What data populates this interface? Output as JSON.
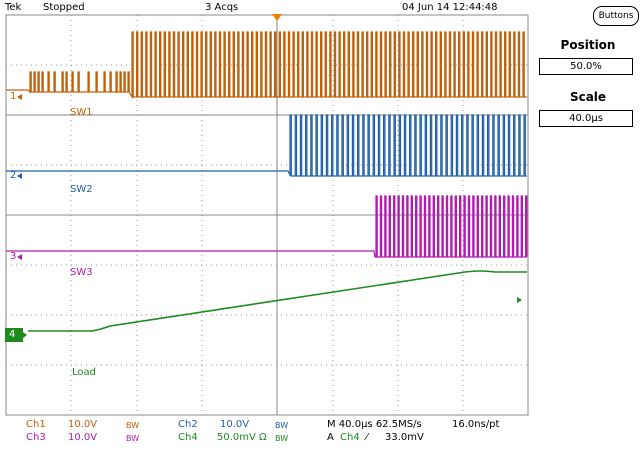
{
  "header": {
    "brand": "Tek",
    "run_state": "Stopped",
    "acqs": "3 Acqs",
    "datetime": "04 Jun 14 12:44:48"
  },
  "side_menu": {
    "buttons_label": "Buttons",
    "position_label": "Position",
    "position_value": "50.0%",
    "scale_label": "Scale",
    "scale_value": "40.0µs"
  },
  "traces": {
    "ch1_label": "SW1",
    "ch2_label": "SW2",
    "ch3_label": "SW3",
    "ch4_label": "Load",
    "ch1_marker": "1",
    "ch2_marker": "2",
    "ch3_marker": "3",
    "ch4_marker": "4"
  },
  "footer": {
    "ch1": "Ch1",
    "ch1_scale": "10.0V",
    "ch2": "Ch2",
    "ch2_scale": "10.0V",
    "ch3": "Ch3",
    "ch3_scale": "10.0V",
    "ch4": "Ch4",
    "ch4_scale": "50.0mV",
    "ohm": "Ω",
    "bw": "BW",
    "timebase": "M 40.0µs 62.5MS/s",
    "resolution": "16.0ns/pt",
    "trigger_prefix": "A",
    "trigger_source": "Ch4",
    "trigger_slope": "⁄",
    "trigger_level": "33.0mV"
  },
  "colors": {
    "ch1": "#c0600a",
    "ch2": "#1f5fa8",
    "ch3": "#b01cb0",
    "ch4": "#1e8a1e",
    "trigger": "#f08000"
  }
}
